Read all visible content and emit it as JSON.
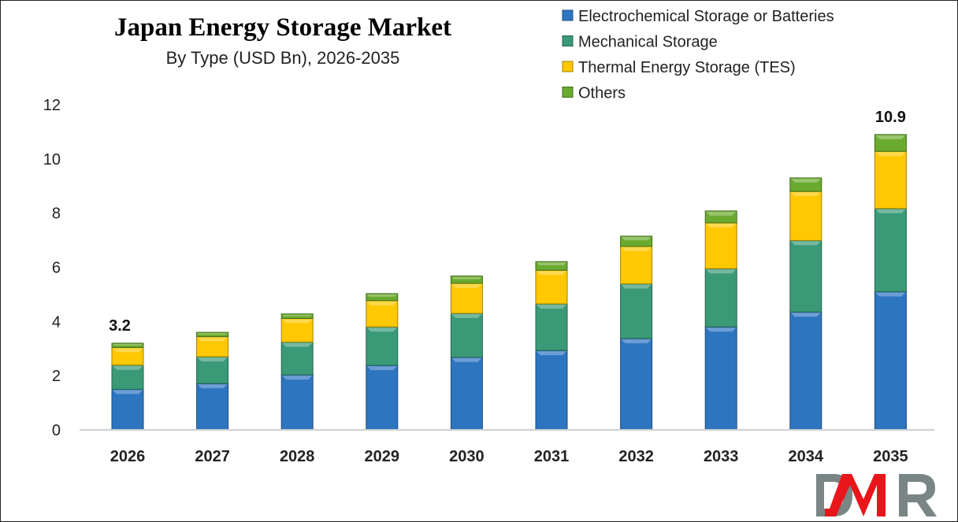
{
  "chart_data": {
    "type": "bar",
    "stacked": true,
    "title": "Japan Energy Storage Market",
    "subtitle": "By Type (USD Bn), 2026-2035",
    "xlabel": "",
    "ylabel": "",
    "ylim": [
      0,
      12
    ],
    "yticks": [
      0,
      2,
      4,
      6,
      8,
      10,
      12
    ],
    "grid": false,
    "legend_position": "top-right",
    "categories": [
      "2026",
      "2027",
      "2028",
      "2029",
      "2030",
      "2031",
      "2032",
      "2033",
      "2034",
      "2035"
    ],
    "series": [
      {
        "name": "Electrochemical Storage or Batteries",
        "color": "#2E75C0",
        "values": [
          1.5,
          1.71,
          2.03,
          2.38,
          2.68,
          2.93,
          3.37,
          3.8,
          4.35,
          5.1
        ]
      },
      {
        "name": "Mechanical Storage",
        "color": "#3A9A78",
        "values": [
          0.89,
          0.99,
          1.21,
          1.42,
          1.62,
          1.72,
          2.02,
          2.15,
          2.64,
          3.07
        ]
      },
      {
        "name": "Thermal Energy Storage (TES)",
        "color": "#FFC800",
        "values": [
          0.65,
          0.74,
          0.87,
          0.97,
          1.11,
          1.24,
          1.38,
          1.69,
          1.81,
          2.11
        ]
      },
      {
        "name": "Others",
        "color": "#6AAA2E",
        "values": [
          0.16,
          0.16,
          0.17,
          0.26,
          0.27,
          0.32,
          0.38,
          0.44,
          0.5,
          0.62
        ]
      }
    ],
    "data_labels": [
      {
        "category": "2026",
        "text": "3.2"
      },
      {
        "category": "2035",
        "text": "10.9"
      }
    ]
  },
  "logo": {
    "text": "DMR",
    "colors": [
      "#7A8585",
      "#E8161B",
      "#7A8585"
    ]
  }
}
